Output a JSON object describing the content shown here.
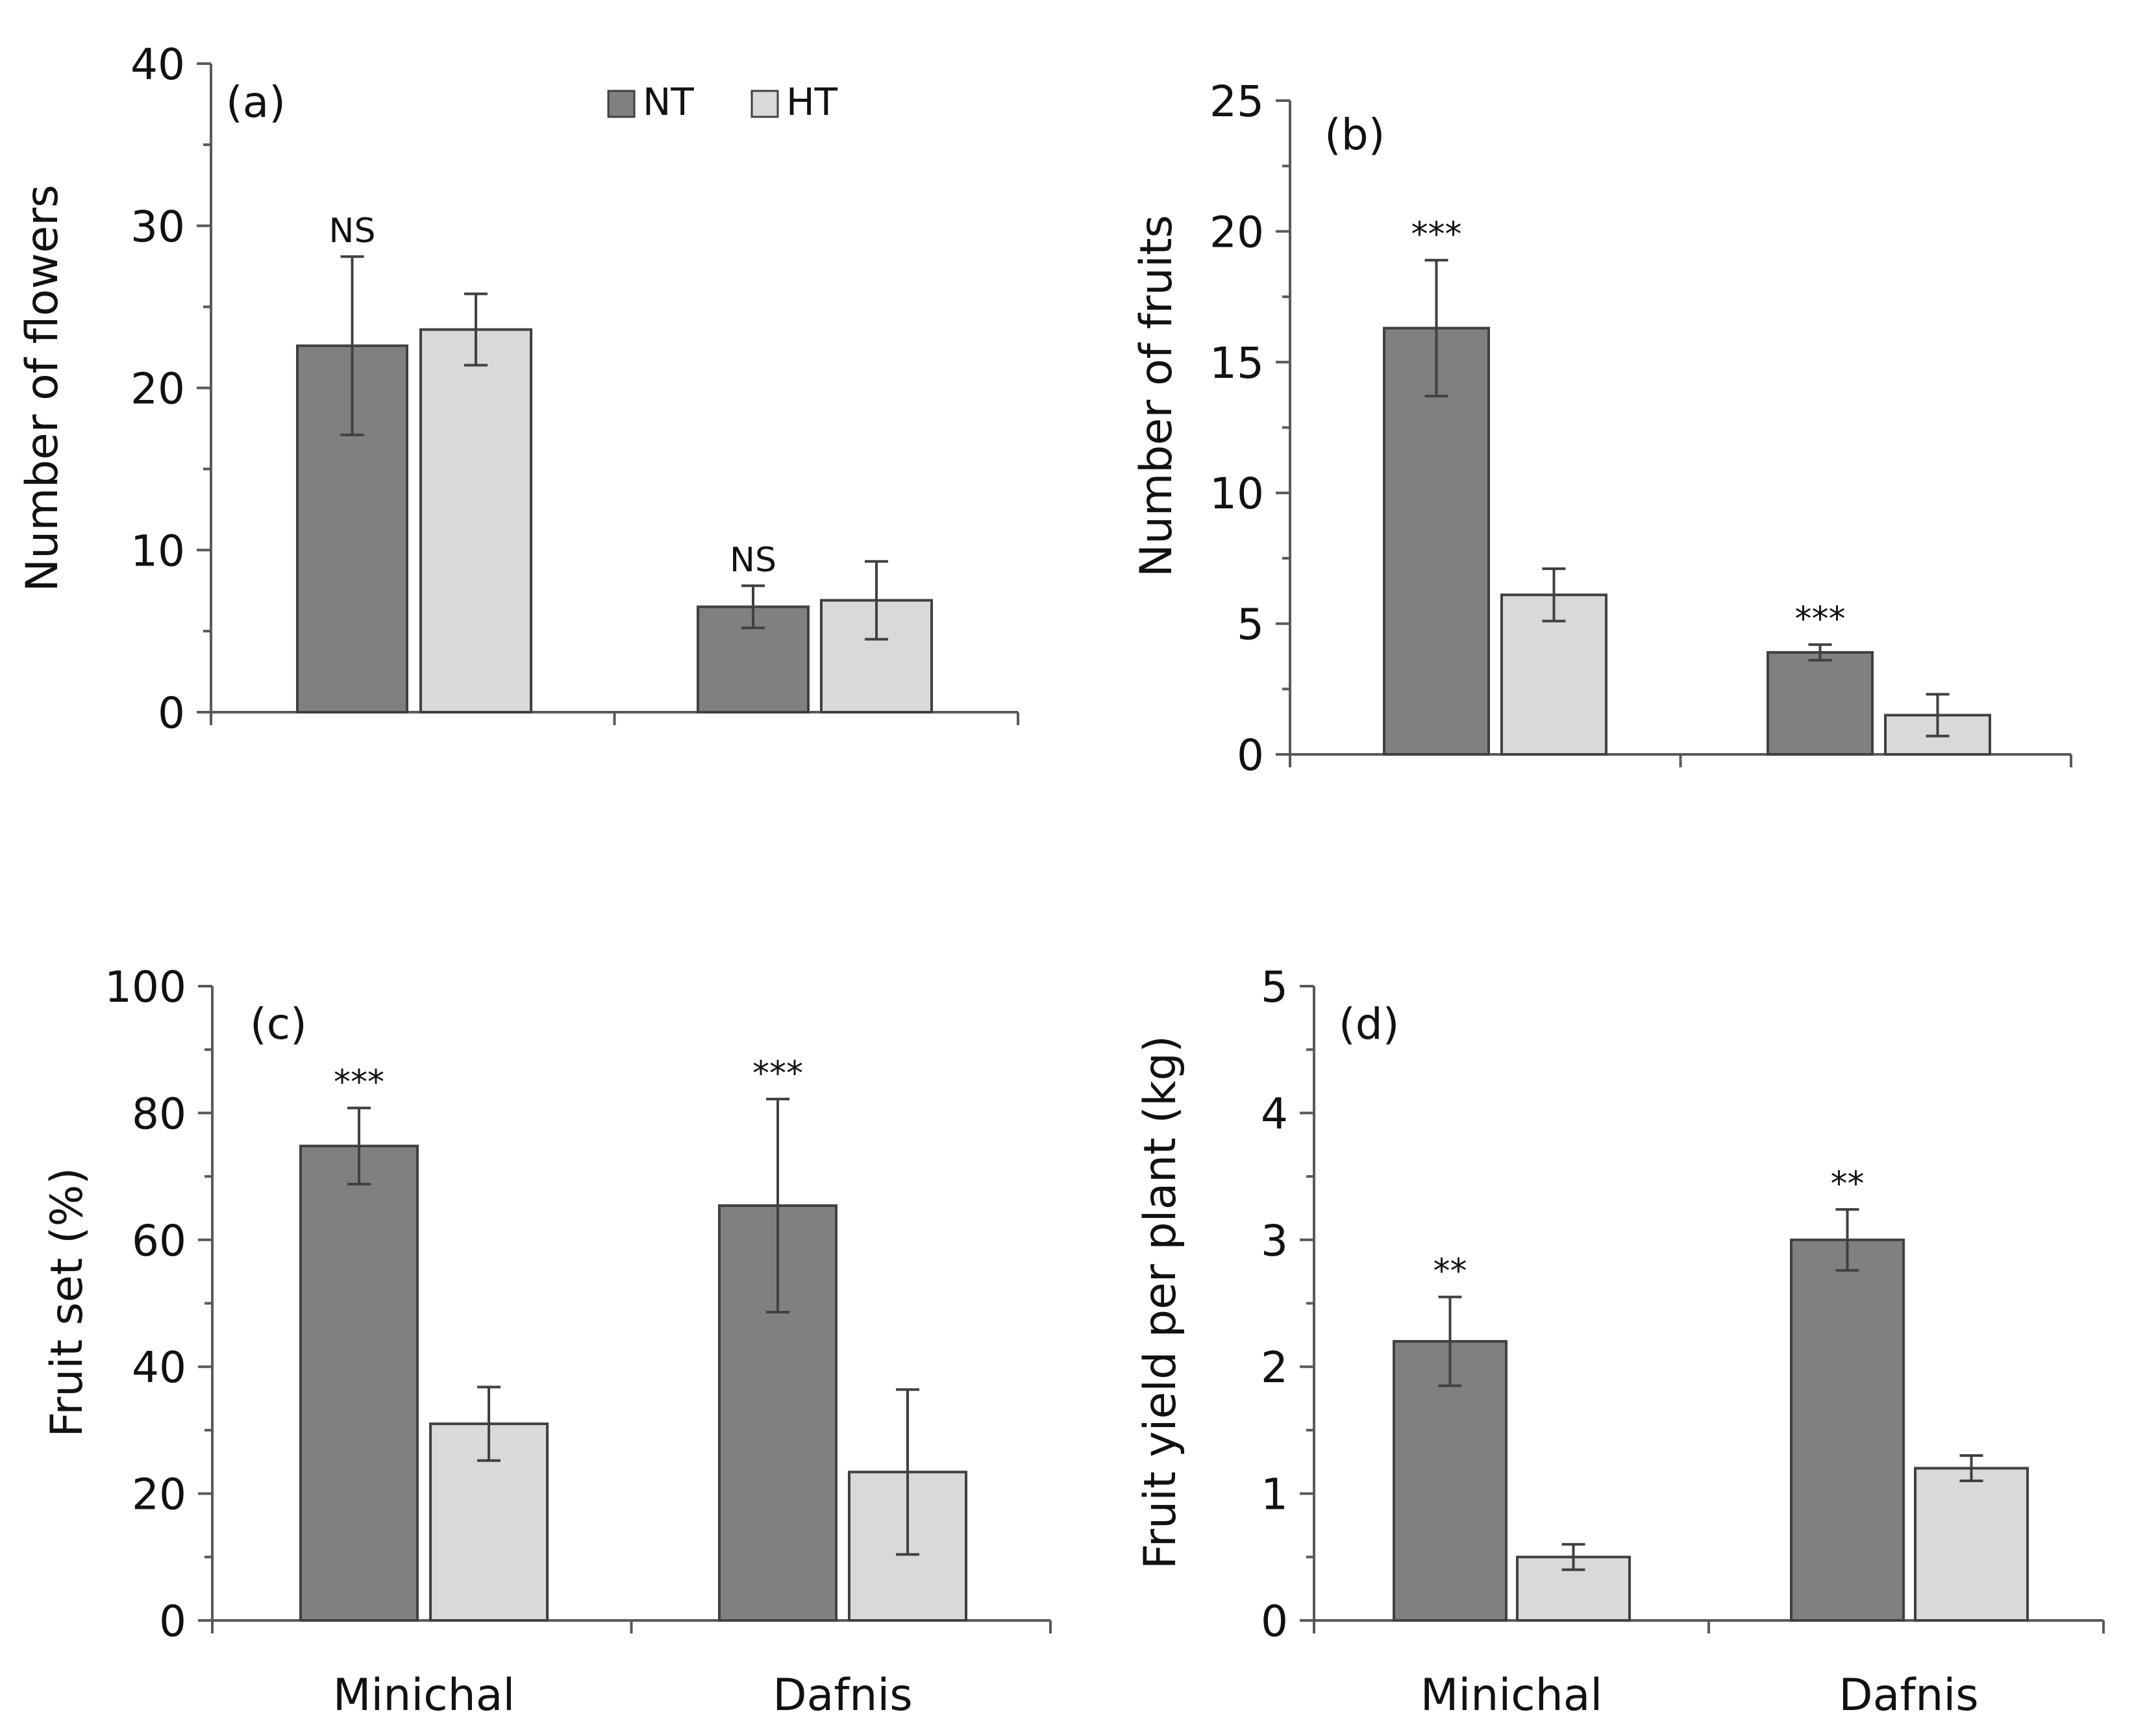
{
  "legend": [
    {
      "name": "NT",
      "color": "#808080"
    },
    {
      "name": "HT",
      "color": "#d9d9d9"
    }
  ],
  "colors": {
    "axis": "#595959",
    "bar_stroke": "#404040",
    "error_bar": "#404040"
  },
  "chart_data": [
    {
      "type": "bar",
      "panel_label": "(a)",
      "ylabel": "Number of flowers",
      "ylim": [
        0,
        40
      ],
      "yticks": [
        0,
        10,
        20,
        30,
        40
      ],
      "categories": [
        "Minichal",
        "Dafnis"
      ],
      "show_category_labels": false,
      "series": [
        {
          "name": "NT",
          "values": [
            22.6,
            6.5
          ],
          "errors": [
            5.5,
            1.3
          ]
        },
        {
          "name": "HT",
          "values": [
            23.6,
            6.9
          ],
          "errors": [
            2.2,
            2.4
          ]
        }
      ],
      "significance": [
        "NS",
        "NS"
      ]
    },
    {
      "type": "bar",
      "panel_label": "(b)",
      "ylabel": "Number of fruits",
      "ylim": [
        0,
        25
      ],
      "yticks": [
        0,
        5,
        10,
        15,
        20,
        25
      ],
      "categories": [
        "Minichal",
        "Dafnis"
      ],
      "show_category_labels": false,
      "series": [
        {
          "name": "NT",
          "values": [
            16.3,
            3.9
          ],
          "errors": [
            2.6,
            0.3
          ]
        },
        {
          "name": "HT",
          "values": [
            6.1,
            1.5
          ],
          "errors": [
            1.0,
            0.8
          ]
        }
      ],
      "significance": [
        "***",
        "***"
      ]
    },
    {
      "type": "bar",
      "panel_label": "(c)",
      "ylabel": "Fruit set (%)",
      "ylim": [
        0,
        100
      ],
      "yticks": [
        0,
        20,
        40,
        60,
        80,
        100
      ],
      "categories": [
        "Minichal",
        "Dafnis"
      ],
      "show_category_labels": true,
      "series": [
        {
          "name": "NT",
          "values": [
            74.8,
            65.4
          ],
          "errors": [
            6.0,
            16.8
          ]
        },
        {
          "name": "HT",
          "values": [
            31.0,
            23.4
          ],
          "errors": [
            5.8,
            13.0
          ]
        }
      ],
      "significance": [
        "***",
        "***"
      ]
    },
    {
      "type": "bar",
      "panel_label": "(d)",
      "ylabel": "Fruit yield per plant (kg)",
      "ylim": [
        0,
        5
      ],
      "yticks": [
        0,
        1,
        2,
        3,
        4,
        5
      ],
      "categories": [
        "Minichal",
        "Dafnis"
      ],
      "show_category_labels": true,
      "series": [
        {
          "name": "NT",
          "values": [
            2.2,
            3.0
          ],
          "errors": [
            0.35,
            0.24
          ]
        },
        {
          "name": "HT",
          "values": [
            0.5,
            1.2
          ],
          "errors": [
            0.1,
            0.1
          ]
        }
      ],
      "significance": [
        "**",
        "**"
      ]
    }
  ]
}
